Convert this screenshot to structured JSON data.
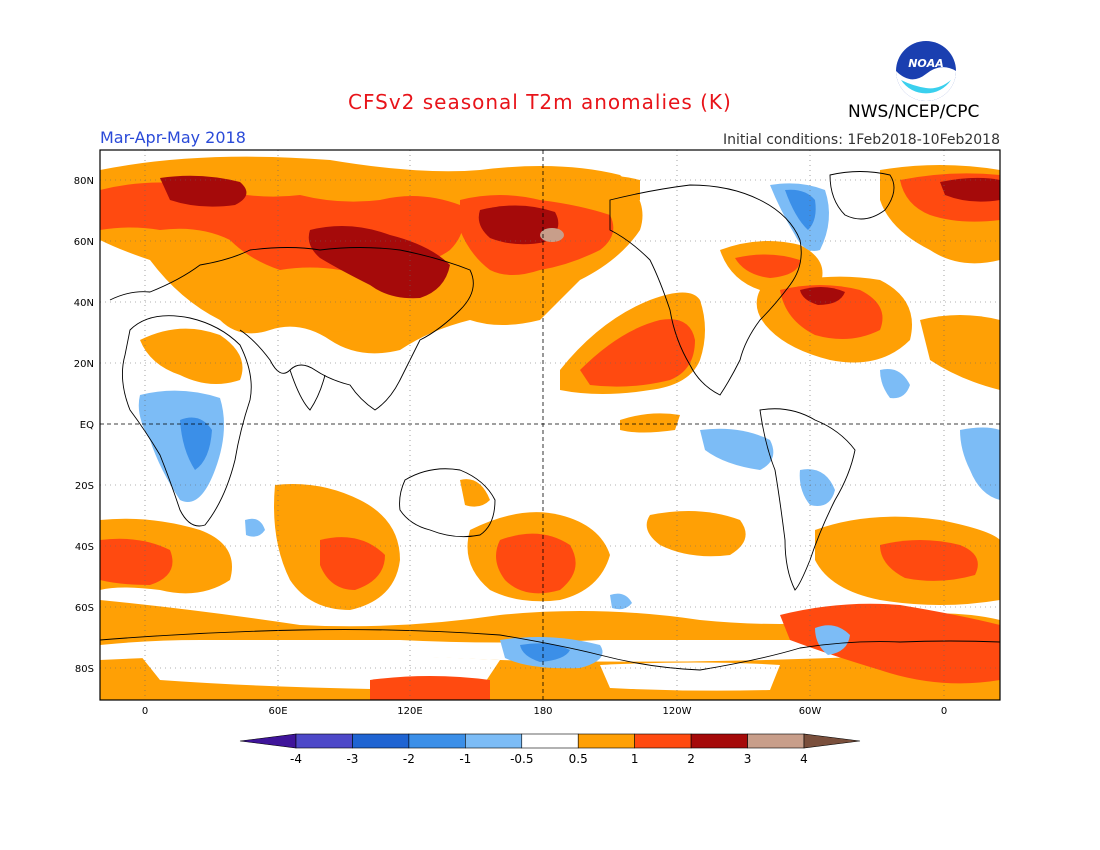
{
  "header": {
    "title": "CFSv2 seasonal T2m anomalies (K)",
    "period": "Mar-Apr-May 2018",
    "initial_conditions": "Initial conditions: 1Feb2018-10Feb2018",
    "agency": "NWS/NCEP/CPC",
    "logo_text": "NOAA"
  },
  "axes": {
    "lat_labels": [
      "80N",
      "60N",
      "40N",
      "20N",
      "EQ",
      "20S",
      "40S",
      "60S",
      "80S"
    ],
    "lon_labels": [
      "0",
      "60E",
      "120E",
      "180",
      "120W",
      "60W",
      "0"
    ]
  },
  "colorbar": {
    "labels": [
      "-4",
      "-3",
      "-2",
      "-1",
      "-0.5",
      "0.5",
      "1",
      "2",
      "3",
      "4"
    ],
    "colors": [
      "#3f149a",
      "#4d48c8",
      "#1f64d2",
      "#3b8fe8",
      "#7cbcf6",
      "#ffffff",
      "#ffa005",
      "#ff4a10",
      "#a50a0a",
      "#c89e8a",
      "#7a4f3c"
    ]
  }
}
